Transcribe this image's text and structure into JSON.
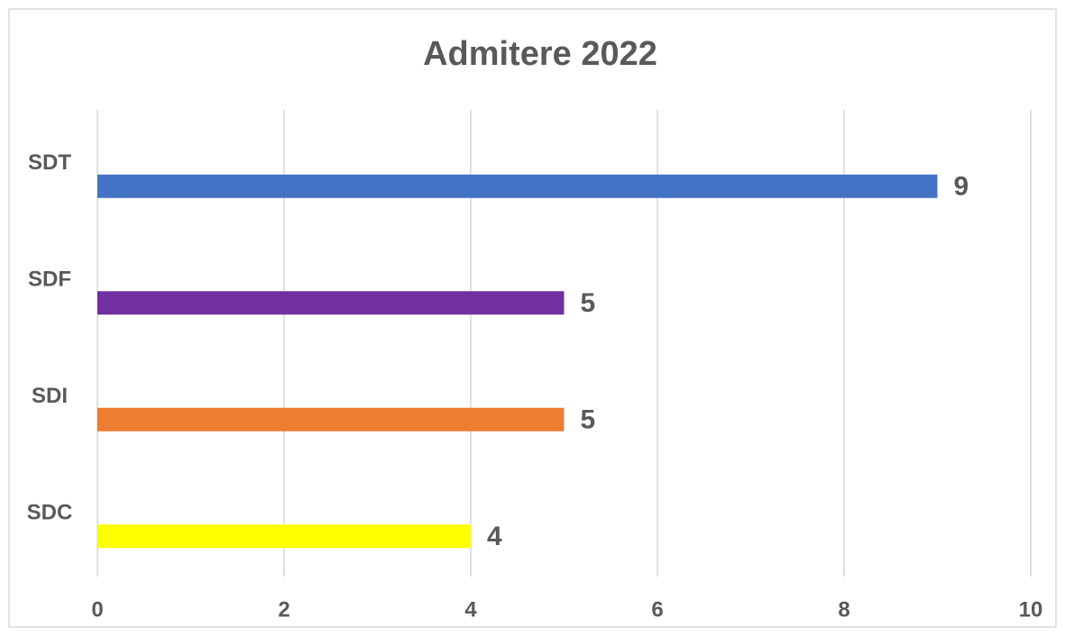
{
  "chart_data": {
    "type": "bar",
    "orientation": "horizontal",
    "title": "Admitere 2022",
    "categories": [
      "SDT",
      "SDF",
      "SDI",
      "SDC"
    ],
    "values": [
      9,
      5,
      5,
      4
    ],
    "colors": [
      "#4472c4",
      "#7030a0",
      "#ed7d31",
      "#ffff00"
    ],
    "xlim": [
      0,
      10
    ],
    "xticks": [
      0,
      2,
      4,
      6,
      8,
      10
    ],
    "grid": true
  }
}
